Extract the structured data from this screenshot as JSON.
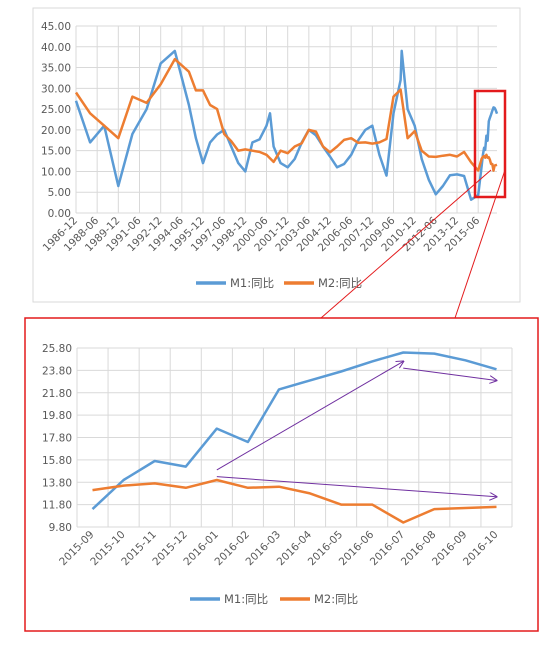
{
  "colors": {
    "m1": "#5B9BD5",
    "m2": "#ED7D31",
    "highlight": "#E31A1C",
    "arrow": "#7030A0",
    "grid": "#D9D9D9",
    "axis_text": "#595959"
  },
  "chart_data": [
    {
      "type": "line",
      "title": "",
      "xlabel": "",
      "ylabel": "",
      "ylim": [
        0,
        45
      ],
      "y_ticks": [
        "0.00",
        "5.00",
        "10.00",
        "15.00",
        "20.00",
        "25.00",
        "30.00",
        "35.00",
        "40.00",
        "45.00"
      ],
      "x_tick_labels": [
        "1986-12",
        "1988-06",
        "1989-12",
        "1991-06",
        "1992-12",
        "1994-06",
        "1995-12",
        "1997-06",
        "1998-12",
        "2000-06",
        "2001-12",
        "2003-06",
        "2004-12",
        "2006-06",
        "2007-12",
        "2009-06",
        "2010-12",
        "2012-06",
        "2013-12",
        "2015-06"
      ],
      "x_range": [
        "1986-12",
        "2016-10"
      ],
      "legend": "bottom",
      "grid": true,
      "series": [
        {
          "name": "M1:同比",
          "points": [
            [
              "1986-12",
              27
            ],
            [
              "1987-12",
              17
            ],
            [
              "1988-12",
              21
            ],
            [
              "1989-12",
              6.5
            ],
            [
              "1990-12",
              19
            ],
            [
              "1991-12",
              25
            ],
            [
              "1992-12",
              36
            ],
            [
              "1993-12",
              39
            ],
            [
              "1994-12",
              26
            ],
            [
              "1995-06",
              18
            ],
            [
              "1995-12",
              12
            ],
            [
              "1996-06",
              17
            ],
            [
              "1996-12",
              18.9
            ],
            [
              "1997-06",
              20
            ],
            [
              "1997-12",
              16
            ],
            [
              "1998-06",
              12
            ],
            [
              "1998-12",
              10
            ],
            [
              "1999-06",
              17
            ],
            [
              "1999-12",
              17.7
            ],
            [
              "2000-06",
              21
            ],
            [
              "2000-09",
              24
            ],
            [
              "2000-12",
              16
            ],
            [
              "2001-06",
              12
            ],
            [
              "2001-12",
              11
            ],
            [
              "2002-06",
              13
            ],
            [
              "2002-12",
              17
            ],
            [
              "2003-06",
              20
            ],
            [
              "2003-12",
              18.7
            ],
            [
              "2004-06",
              16
            ],
            [
              "2004-12",
              13.6
            ],
            [
              "2005-06",
              11
            ],
            [
              "2005-12",
              11.8
            ],
            [
              "2006-06",
              14
            ],
            [
              "2006-12",
              17.5
            ],
            [
              "2007-06",
              20
            ],
            [
              "2007-12",
              21
            ],
            [
              "2008-06",
              14
            ],
            [
              "2008-12",
              9
            ],
            [
              "2009-06",
              24
            ],
            [
              "2009-12",
              32
            ],
            [
              "2010-01",
              39
            ],
            [
              "2010-06",
              25
            ],
            [
              "2010-12",
              21
            ],
            [
              "2011-06",
              13
            ],
            [
              "2011-12",
              8
            ],
            [
              "2012-06",
              4.5
            ],
            [
              "2012-12",
              6.5
            ],
            [
              "2013-06",
              9.1
            ],
            [
              "2013-12",
              9.3
            ],
            [
              "2014-06",
              8.9
            ],
            [
              "2014-12",
              3.2
            ],
            [
              "2015-06",
              4.3
            ],
            [
              "2015-09",
              11.4
            ],
            [
              "2015-10",
              14
            ],
            [
              "2015-11",
              15.7
            ],
            [
              "2015-12",
              15.2
            ],
            [
              "2016-01",
              18.6
            ],
            [
              "2016-02",
              17.4
            ],
            [
              "2016-03",
              22.1
            ],
            [
              "2016-04",
              22.9
            ],
            [
              "2016-05",
              23.7
            ],
            [
              "2016-06",
              24.6
            ],
            [
              "2016-07",
              25.4
            ],
            [
              "2016-08",
              25.3
            ],
            [
              "2016-09",
              24.7
            ],
            [
              "2016-10",
              23.9
            ]
          ]
        },
        {
          "name": "M2:同比",
          "points": [
            [
              "1986-12",
              29
            ],
            [
              "1987-12",
              24
            ],
            [
              "1988-12",
              21
            ],
            [
              "1989-12",
              18
            ],
            [
              "1990-12",
              28
            ],
            [
              "1991-12",
              26.5
            ],
            [
              "1992-12",
              31
            ],
            [
              "1993-12",
              37
            ],
            [
              "1994-12",
              34
            ],
            [
              "1995-06",
              29.5
            ],
            [
              "1995-12",
              29.5
            ],
            [
              "1996-06",
              26
            ],
            [
              "1996-12",
              25
            ],
            [
              "1997-06",
              19
            ],
            [
              "1997-12",
              17.3
            ],
            [
              "1998-06",
              15
            ],
            [
              "1998-12",
              15.3
            ],
            [
              "1999-06",
              15
            ],
            [
              "1999-12",
              14.7
            ],
            [
              "2000-06",
              14
            ],
            [
              "2000-12",
              12.3
            ],
            [
              "2001-06",
              15
            ],
            [
              "2001-12",
              14.4
            ],
            [
              "2002-06",
              16
            ],
            [
              "2002-12",
              16.8
            ],
            [
              "2003-06",
              20
            ],
            [
              "2003-12",
              19.6
            ],
            [
              "2004-06",
              16
            ],
            [
              "2004-12",
              14.6
            ],
            [
              "2005-06",
              16
            ],
            [
              "2005-12",
              17.6
            ],
            [
              "2006-06",
              18
            ],
            [
              "2006-12",
              16.9
            ],
            [
              "2007-06",
              17
            ],
            [
              "2007-12",
              16.7
            ],
            [
              "2008-06",
              17
            ],
            [
              "2008-12",
              17.8
            ],
            [
              "2009-06",
              28
            ],
            [
              "2009-12",
              29.7
            ],
            [
              "2010-06",
              18
            ],
            [
              "2010-12",
              19.7
            ],
            [
              "2011-06",
              15
            ],
            [
              "2011-12",
              13.6
            ],
            [
              "2012-06",
              13.5
            ],
            [
              "2012-12",
              13.8
            ],
            [
              "2013-06",
              14
            ],
            [
              "2013-12",
              13.6
            ],
            [
              "2014-06",
              14.7
            ],
            [
              "2014-12",
              12.2
            ],
            [
              "2015-06",
              10.2
            ],
            [
              "2015-09",
              13.1
            ],
            [
              "2015-10",
              13.5
            ],
            [
              "2015-11",
              13.7
            ],
            [
              "2015-12",
              13.3
            ],
            [
              "2016-01",
              14
            ],
            [
              "2016-02",
              13.3
            ],
            [
              "2016-03",
              13.4
            ],
            [
              "2016-04",
              12.8
            ],
            [
              "2016-05",
              11.8
            ],
            [
              "2016-06",
              11.8
            ],
            [
              "2016-07",
              10.2
            ],
            [
              "2016-08",
              11.4
            ],
            [
              "2016-09",
              11.5
            ],
            [
              "2016-10",
              11.6
            ]
          ]
        }
      ]
    },
    {
      "type": "line",
      "title": "",
      "xlabel": "",
      "ylabel": "",
      "ylim": [
        9.8,
        25.8
      ],
      "y_ticks": [
        "9.80",
        "11.80",
        "13.80",
        "15.80",
        "17.80",
        "19.80",
        "21.80",
        "23.80",
        "25.80"
      ],
      "categories": [
        "2015-09",
        "2015-10",
        "2015-11",
        "2015-12",
        "2016-01",
        "2016-02",
        "2016-03",
        "2016-04",
        "2016-05",
        "2016-06",
        "2016-07",
        "2016-08",
        "2016-09",
        "2016-10"
      ],
      "legend": "bottom",
      "grid": true,
      "series": [
        {
          "name": "M1:同比",
          "values": [
            11.4,
            14.0,
            15.7,
            15.2,
            18.6,
            17.4,
            22.1,
            22.9,
            23.7,
            24.6,
            25.4,
            25.3,
            24.7,
            23.9
          ]
        },
        {
          "name": "M2:同比",
          "values": [
            13.1,
            13.5,
            13.7,
            13.3,
            14.0,
            13.3,
            13.4,
            12.8,
            11.8,
            11.8,
            10.2,
            11.4,
            11.5,
            11.6
          ]
        }
      ],
      "trend_arrows": [
        {
          "from": [
            "2016-01",
            14.9
          ],
          "to": [
            "2016-07",
            24.6
          ]
        },
        {
          "from": [
            "2016-07",
            24.0
          ],
          "to": [
            "2016-10",
            22.9
          ]
        },
        {
          "from": [
            "2016-01",
            14.3
          ],
          "to": [
            "2016-10",
            12.5
          ]
        }
      ]
    }
  ]
}
